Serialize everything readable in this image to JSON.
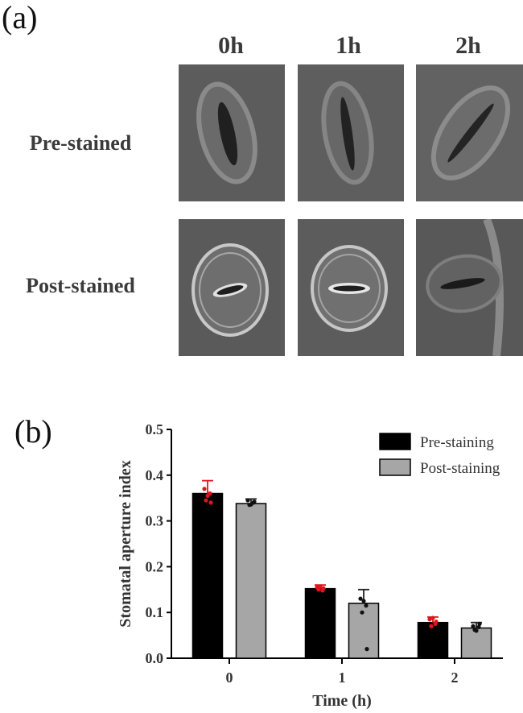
{
  "panel_a": {
    "label": "(a)",
    "columns": [
      "0h",
      "1h",
      "2h"
    ],
    "rows": [
      "Pre-stained",
      "Post-stained"
    ]
  },
  "panel_b": {
    "label": "(b)"
  },
  "chart_data": {
    "type": "bar",
    "categories": [
      "0",
      "1",
      "2"
    ],
    "xlabel": "Time (h)",
    "ylabel": "Stomatal aperture index",
    "ylim": [
      0,
      0.5
    ],
    "yticks": [
      "0.0",
      "0.1",
      "0.2",
      "0.3",
      "0.4",
      "0.5"
    ],
    "legend_position": "top-right",
    "series": [
      {
        "name": "Pre-staining",
        "color": "#000000",
        "values": [
          0.36,
          0.152,
          0.078
        ],
        "errors": [
          0.028,
          0.008,
          0.012
        ],
        "points": [
          [
            0.37,
            0.36,
            0.345,
            0.34,
            0.355
          ],
          [
            0.155,
            0.148,
            0.15,
            0.153,
            0.156
          ],
          [
            0.085,
            0.075,
            0.07,
            0.08,
            0.088
          ]
        ],
        "point_color": "#e0141e"
      },
      {
        "name": "Post-staining",
        "color": "#a6a6a6",
        "values": [
          0.338,
          0.12,
          0.066
        ],
        "errors": [
          0.01,
          0.03,
          0.012
        ],
        "points": [
          [
            0.345,
            0.34,
            0.335,
            0.342,
            0.336
          ],
          [
            0.13,
            0.115,
            0.1,
            0.02,
            0.125
          ],
          [
            0.07,
            0.068,
            0.062,
            0.075,
            0.06
          ]
        ],
        "point_color": "#111111"
      }
    ]
  }
}
